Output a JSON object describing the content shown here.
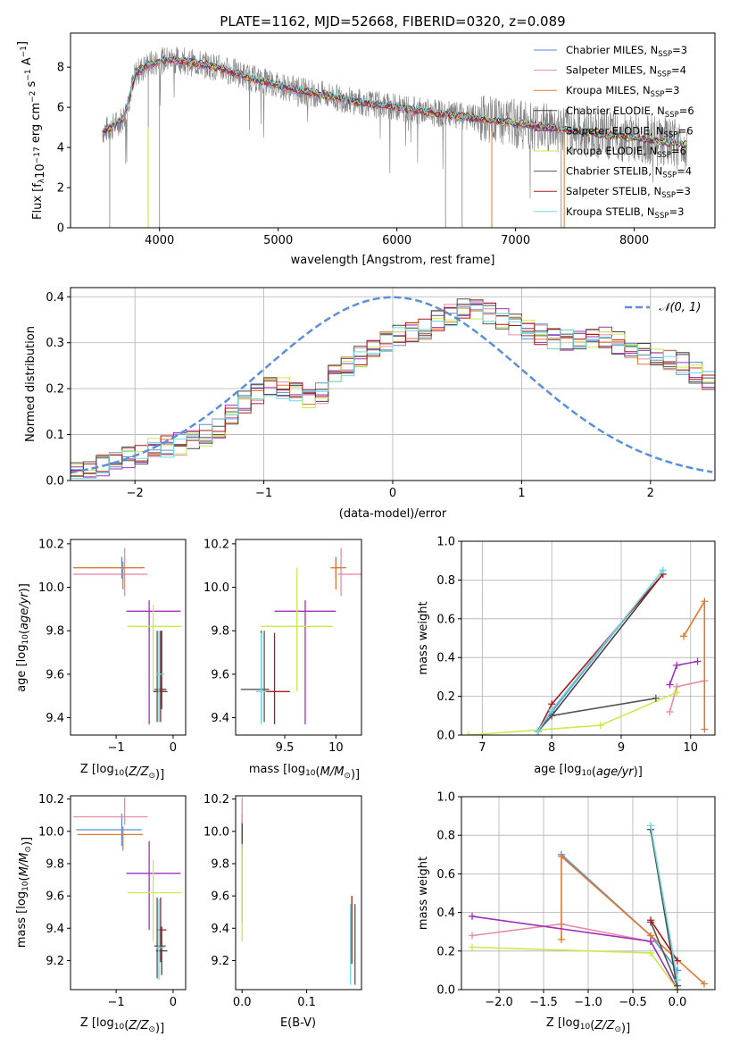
{
  "figure": {
    "title": "PLATE=1162, MJD=52668, FIBERID=0320, z=0.089"
  },
  "colors": {
    "Chabrier MILES": "#5b8fd9",
    "Salpeter MILES": "#e88aa8",
    "Kroupa MILES": "#e07a2e",
    "Chabrier ELODIE": "#444444",
    "Salpeter ELODIE": "#a030b8",
    "Kroupa ELODIE": "#c9ea4a",
    "Chabrier STELIB": "#555555",
    "Salpeter STELIB": "#aa1a1a",
    "Kroupa STELIB": "#70d8e0",
    "data": "#808080",
    "normal": "#5b8fd9"
  },
  "chart_data": [
    {
      "id": "spectrum",
      "type": "line",
      "title": "PLATE=1162, MJD=52668, FIBERID=0320, z=0.089",
      "xlabel": "wavelength [Angstrom, rest frame]",
      "ylabel": "Flux [f_λ 10^-17 erg cm^-2 s^-1 A^-1]",
      "xlim": [
        3250,
        8680
      ],
      "ylim": [
        0,
        9.7
      ],
      "xticks": [
        4000,
        5000,
        6000,
        7000,
        8000
      ],
      "yticks": [
        0,
        2,
        4,
        6,
        8
      ],
      "grid": false,
      "legend_position": "top-right",
      "legend": [
        {
          "name": "Chabrier MILES",
          "nssp": "3"
        },
        {
          "name": "Salpeter MILES",
          "nssp": "4"
        },
        {
          "name": "Kroupa MILES",
          "nssp": "3"
        },
        {
          "name": "Chabrier ELODIE",
          "nssp": "6"
        },
        {
          "name": "Salpeter ELODIE",
          "nssp": "6"
        },
        {
          "name": "Kroupa ELODIE",
          "nssp": "6"
        },
        {
          "name": "Chabrier STELIB",
          "nssp": "4"
        },
        {
          "name": "Salpeter STELIB",
          "nssp": "3"
        },
        {
          "name": "Kroupa STELIB",
          "nssp": "3"
        }
      ],
      "continuum": {
        "x": [
          3520,
          3600,
          3700,
          3800,
          3900,
          4000,
          4100,
          4200,
          4400,
          4600,
          4800,
          5000,
          5200,
          5400,
          5600,
          5800,
          6000,
          6200,
          6400,
          6600,
          6800,
          7000,
          7200,
          7400,
          7600,
          7800,
          8000,
          8200,
          8450
        ],
        "y": [
          4.8,
          5.0,
          5.5,
          7.7,
          8.1,
          8.3,
          8.4,
          8.3,
          8.1,
          7.8,
          7.4,
          7.1,
          6.8,
          6.6,
          6.35,
          6.15,
          6.0,
          5.8,
          5.65,
          5.5,
          5.35,
          5.2,
          5.05,
          4.9,
          4.75,
          4.6,
          4.45,
          4.3,
          4.1
        ]
      }
    },
    {
      "id": "residuals",
      "type": "line",
      "xlabel": "(data-model)/error",
      "ylabel": "Normed distribution",
      "xlim": [
        -2.5,
        2.5
      ],
      "ylim": [
        0,
        0.42
      ],
      "xticks": [
        -2,
        -1,
        0,
        1,
        2
      ],
      "yticks": [
        0.0,
        0.1,
        0.2,
        0.3,
        0.4
      ],
      "grid": true,
      "legend_position": "top-right",
      "legend_label": "N(0,1)",
      "bin_width": 0.1,
      "bins_start": -2.5,
      "histogram_mean": [
        0.02,
        0.025,
        0.035,
        0.045,
        0.05,
        0.06,
        0.07,
        0.075,
        0.08,
        0.09,
        0.1,
        0.115,
        0.14,
        0.17,
        0.19,
        0.2,
        0.2,
        0.19,
        0.175,
        0.19,
        0.235,
        0.25,
        0.27,
        0.28,
        0.3,
        0.315,
        0.32,
        0.33,
        0.35,
        0.36,
        0.375,
        0.37,
        0.365,
        0.35,
        0.34,
        0.33,
        0.32,
        0.31,
        0.305,
        0.3,
        0.305,
        0.31,
        0.3,
        0.285,
        0.275,
        0.27,
        0.265,
        0.255,
        0.235,
        0.215,
        0.2,
        0.185,
        0.165,
        0.15,
        0.14,
        0.13,
        0.12,
        0.11,
        0.1,
        0.09,
        0.08,
        0.075,
        0.065,
        0.06,
        0.055,
        0.05,
        0.05,
        0.045,
        0.04,
        0.035
      ]
    },
    {
      "id": "age-vs-Z",
      "type": "scatter",
      "xlabel": "Z [log10(Z/Z☉)]",
      "ylabel": "age [log10(age/yr)]",
      "xlim": [
        -1.8,
        0.22
      ],
      "ylim": [
        9.32,
        10.22
      ],
      "xticks": [
        -1,
        0
      ],
      "yticks": [
        9.4,
        9.6,
        9.8,
        10.0,
        10.2
      ],
      "points": [
        {
          "series": "Chabrier MILES",
          "x": -0.9,
          "y": 10.09,
          "xerr": [
            0.85,
            0.4
          ],
          "yerr": [
            0.05,
            0.05
          ]
        },
        {
          "series": "Salpeter MILES",
          "x": -0.85,
          "y": 10.06,
          "xerr": [
            0.9,
            0.4
          ],
          "yerr": [
            0.1,
            0.12
          ]
        },
        {
          "series": "Kroupa MILES",
          "x": -0.88,
          "y": 10.09,
          "xerr": [
            0.85,
            0.35
          ],
          "yerr": [
            0.1,
            0.03
          ]
        },
        {
          "series": "Chabrier ELODIE",
          "x": -0.2,
          "y": 9.52,
          "xerr": [
            0.15,
            0.1
          ],
          "yerr": [
            0.08,
            0.28
          ]
        },
        {
          "series": "Salpeter ELODIE",
          "x": -0.42,
          "y": 9.89,
          "xerr": [
            0.4,
            0.55
          ],
          "yerr": [
            0.52,
            0.05
          ]
        },
        {
          "series": "Kroupa ELODIE",
          "x": -0.35,
          "y": 9.82,
          "xerr": [
            0.45,
            0.5
          ],
          "yerr": [
            0.3,
            0.1
          ]
        },
        {
          "series": "Chabrier STELIB",
          "x": -0.28,
          "y": 9.53,
          "xerr": [
            0.05,
            0.15
          ],
          "yerr": [
            0.15,
            0.27
          ]
        },
        {
          "series": "Salpeter STELIB",
          "x": -0.22,
          "y": 9.53,
          "xerr": [
            0.05,
            0.1
          ],
          "yerr": [
            0.15,
            0.27
          ]
        },
        {
          "series": "Kroupa STELIB",
          "x": -0.25,
          "y": 9.6,
          "xerr": [
            0.05,
            0.1
          ],
          "yerr": [
            0.22,
            0.2
          ]
        }
      ]
    },
    {
      "id": "age-vs-mass",
      "type": "scatter",
      "xlabel": "mass [log10(M/M☉)]",
      "ylabel": "",
      "xlim": [
        9.02,
        10.25
      ],
      "ylim": [
        9.32,
        10.22
      ],
      "xticks": [
        9.5,
        10.0
      ],
      "yticks": [
        9.4,
        9.6,
        9.8,
        10.0,
        10.2
      ],
      "points": [
        {
          "series": "Chabrier MILES",
          "x": 10.0,
          "y": 10.09,
          "xerr": [
            0.05,
            0.08
          ],
          "yerr": [
            0.05,
            0.05
          ]
        },
        {
          "series": "Salpeter MILES",
          "x": 10.05,
          "y": 10.06,
          "xerr": [
            0.03,
            0.2
          ],
          "yerr": [
            0.1,
            0.12
          ]
        },
        {
          "series": "Kroupa MILES",
          "x": 10.0,
          "y": 10.09,
          "xerr": [
            0.05,
            0.1
          ],
          "yerr": [
            0.1,
            0.03
          ]
        },
        {
          "series": "Chabrier ELODIE",
          "x": 9.27,
          "y": 9.53,
          "xerr": [
            0.2,
            0.07
          ],
          "yerr": [
            0.15,
            0.27
          ]
        },
        {
          "series": "Salpeter ELODIE",
          "x": 9.7,
          "y": 9.89,
          "xerr": [
            0.3,
            0.3
          ],
          "yerr": [
            0.52,
            0.05
          ]
        },
        {
          "series": "Kroupa ELODIE",
          "x": 9.62,
          "y": 9.82,
          "xerr": [
            0.35,
            0.35
          ],
          "yerr": [
            0.3,
            0.27
          ]
        },
        {
          "series": "Chabrier STELIB",
          "x": 9.3,
          "y": 9.53,
          "xerr": [
            0.05,
            0.05
          ],
          "yerr": [
            0.15,
            0.27
          ]
        },
        {
          "series": "Salpeter STELIB",
          "x": 9.4,
          "y": 9.52,
          "xerr": [
            0.1,
            0.15
          ],
          "yerr": [
            0.15,
            0.27
          ]
        },
        {
          "series": "Kroupa STELIB",
          "x": 9.27,
          "y": 9.52,
          "xerr": [
            0.05,
            0.05
          ],
          "yerr": [
            0.15,
            0.27
          ]
        }
      ]
    },
    {
      "id": "massweight-vs-age",
      "type": "line",
      "xlabel": "age [log10(age/yr)]",
      "ylabel": "mass weight",
      "xlim": [
        6.7,
        10.35
      ],
      "ylim": [
        0,
        1.0
      ],
      "xticks": [
        7,
        8,
        9,
        10
      ],
      "yticks": [
        0.0,
        0.2,
        0.4,
        0.6,
        0.8,
        1.0
      ],
      "grid": true,
      "series": [
        {
          "name": "Chabrier MILES",
          "x": [
            7.8,
            8.0,
            9.6
          ],
          "y": [
            0.02,
            0.12,
            0.85
          ]
        },
        {
          "name": "Salpeter MILES",
          "x": [
            9.7,
            9.8,
            10.2
          ],
          "y": [
            0.12,
            0.25,
            0.28
          ]
        },
        {
          "name": "Kroupa MILES",
          "x": [
            9.9,
            10.2,
            10.2
          ],
          "y": [
            0.51,
            0.69,
            0.03
          ]
        },
        {
          "name": "Chabrier ELODIE",
          "x": [
            7.8,
            8.0,
            9.6
          ],
          "y": [
            0.02,
            0.1,
            0.83
          ]
        },
        {
          "name": "Salpeter ELODIE",
          "x": [
            9.7,
            9.8,
            10.1
          ],
          "y": [
            0.26,
            0.36,
            0.38
          ]
        },
        {
          "name": "Kroupa ELODIE",
          "x": [
            6.8,
            8.7,
            9.8
          ],
          "y": [
            0.0,
            0.05,
            0.22
          ]
        },
        {
          "name": "Chabrier STELIB",
          "x": [
            7.8,
            8.0,
            9.5
          ],
          "y": [
            0.02,
            0.1,
            0.19
          ]
        },
        {
          "name": "Salpeter STELIB",
          "x": [
            7.8,
            8.0,
            9.6
          ],
          "y": [
            0.02,
            0.16,
            0.83
          ]
        },
        {
          "name": "Kroupa STELIB",
          "x": [
            7.8,
            8.0,
            9.6
          ],
          "y": [
            0.02,
            0.13,
            0.85
          ]
        }
      ]
    },
    {
      "id": "mass-vs-Z",
      "type": "scatter",
      "xlabel": "Z [log10(Z/Z☉)]",
      "ylabel": "mass [log10(M/M☉)]",
      "xlim": [
        -1.8,
        0.22
      ],
      "ylim": [
        9.02,
        10.22
      ],
      "xticks": [
        -1,
        0
      ],
      "yticks": [
        9.2,
        9.4,
        9.6,
        9.8,
        10.0,
        10.2
      ],
      "points": [
        {
          "series": "Chabrier MILES",
          "x": -0.9,
          "y": 10.01,
          "xerr": [
            0.8,
            0.35
          ],
          "yerr": [
            0.1,
            0.1
          ]
        },
        {
          "series": "Salpeter MILES",
          "x": -0.85,
          "y": 10.09,
          "xerr": [
            0.9,
            0.4
          ],
          "yerr": [
            0.05,
            0.12
          ]
        },
        {
          "series": "Kroupa MILES",
          "x": -0.88,
          "y": 9.98,
          "xerr": [
            0.8,
            0.35
          ],
          "yerr": [
            0.1,
            0.05
          ]
        },
        {
          "series": "Chabrier ELODIE",
          "x": -0.2,
          "y": 9.26,
          "xerr": [
            0.1,
            0.1
          ],
          "yerr": [
            0.15,
            0.15
          ]
        },
        {
          "series": "Salpeter ELODIE",
          "x": -0.42,
          "y": 9.74,
          "xerr": [
            0.4,
            0.55
          ],
          "yerr": [
            0.35,
            0.2
          ]
        },
        {
          "series": "Kroupa ELODIE",
          "x": -0.35,
          "y": 9.62,
          "xerr": [
            0.45,
            0.5
          ],
          "yerr": [
            0.3,
            0.2
          ]
        },
        {
          "series": "Chabrier STELIB",
          "x": -0.28,
          "y": 9.29,
          "xerr": [
            0.05,
            0.15
          ],
          "yerr": [
            0.2,
            0.3
          ]
        },
        {
          "series": "Salpeter STELIB",
          "x": -0.22,
          "y": 9.39,
          "xerr": [
            0.05,
            0.1
          ],
          "yerr": [
            0.2,
            0.2
          ]
        },
        {
          "series": "Kroupa STELIB",
          "x": -0.25,
          "y": 9.28,
          "xerr": [
            0.05,
            0.1
          ],
          "yerr": [
            0.2,
            0.3
          ]
        }
      ]
    },
    {
      "id": "mass-vs-EBV",
      "type": "scatter",
      "xlabel": "E(B-V)",
      "ylabel": "",
      "xlim": [
        -0.01,
        0.185
      ],
      "ylim": [
        9.02,
        10.22
      ],
      "xticks": [
        0.0,
        0.1
      ],
      "yticks": [
        9.2,
        9.4,
        9.6,
        9.8,
        10.0,
        10.2
      ],
      "points": [
        {
          "series": "Chabrier MILES",
          "x": 0.0,
          "y": 10.01,
          "yerr": [
            0.1,
            0.1
          ]
        },
        {
          "series": "Salpeter MILES",
          "x": 0.0,
          "y": 10.09,
          "yerr": [
            0.05,
            0.12
          ]
        },
        {
          "series": "Kroupa MILES",
          "x": 0.0,
          "y": 9.98,
          "yerr": [
            0.1,
            0.05
          ]
        },
        {
          "series": "Chabrier ELODIE",
          "x": 0.0,
          "y": 9.95,
          "yerr": [
            0.1,
            0.1
          ]
        },
        {
          "series": "Salpeter ELODIE",
          "x": 0.0,
          "y": 9.74,
          "yerr": [
            0.3,
            0.2
          ]
        },
        {
          "series": "Kroupa ELODIE",
          "x": 0.0,
          "y": 9.62,
          "yerr": [
            0.3,
            0.3
          ]
        },
        {
          "series": "Chabrier STELIB",
          "x": 0.175,
          "y": 9.3,
          "yerr": [
            0.25,
            0.25
          ]
        },
        {
          "series": "Salpeter STELIB",
          "x": 0.17,
          "y": 9.38,
          "yerr": [
            0.2,
            0.22
          ]
        },
        {
          "series": "Kroupa STELIB",
          "x": 0.168,
          "y": 9.3,
          "yerr": [
            0.25,
            0.25
          ]
        }
      ]
    },
    {
      "id": "massweight-vs-Z",
      "type": "line",
      "xlabel": "Z [log10(Z/Z☉)]",
      "ylabel": "mass weight",
      "xlim": [
        -2.42,
        0.42
      ],
      "ylim": [
        0,
        1.0
      ],
      "xticks": [
        -2.0,
        -1.5,
        -1.0,
        -0.5,
        0.0
      ],
      "yticks": [
        0.0,
        0.2,
        0.4,
        0.6,
        0.8,
        1.0
      ],
      "grid": true,
      "series": [
        {
          "name": "Chabrier MILES",
          "x": [
            -1.3,
            -0.3,
            0.0
          ],
          "y": [
            0.7,
            0.28,
            0.1
          ]
        },
        {
          "name": "Salpeter MILES",
          "x": [
            -2.3,
            -1.3,
            -0.3
          ],
          "y": [
            0.28,
            0.34,
            0.25
          ]
        },
        {
          "name": "Kroupa MILES",
          "x": [
            -1.3,
            -1.3,
            -0.3,
            0.3
          ],
          "y": [
            0.26,
            0.69,
            0.28,
            0.03
          ]
        },
        {
          "name": "Chabrier ELODIE",
          "x": [
            -0.3,
            0.0
          ],
          "y": [
            0.83,
            0.0
          ]
        },
        {
          "name": "Salpeter ELODIE",
          "x": [
            -2.3,
            -0.3,
            0.0
          ],
          "y": [
            0.38,
            0.25,
            0.0
          ]
        },
        {
          "name": "Kroupa ELODIE",
          "x": [
            -2.3,
            -0.3,
            0.0
          ],
          "y": [
            0.22,
            0.19,
            0.0
          ]
        },
        {
          "name": "Chabrier STELIB",
          "x": [
            -0.3,
            0.0
          ],
          "y": [
            0.35,
            0.02
          ]
        },
        {
          "name": "Salpeter STELIB",
          "x": [
            -0.3,
            0.0
          ],
          "y": [
            0.36,
            0.15
          ]
        },
        {
          "name": "Kroupa STELIB",
          "x": [
            -0.3,
            0.0
          ],
          "y": [
            0.85,
            0.05
          ]
        }
      ]
    }
  ]
}
